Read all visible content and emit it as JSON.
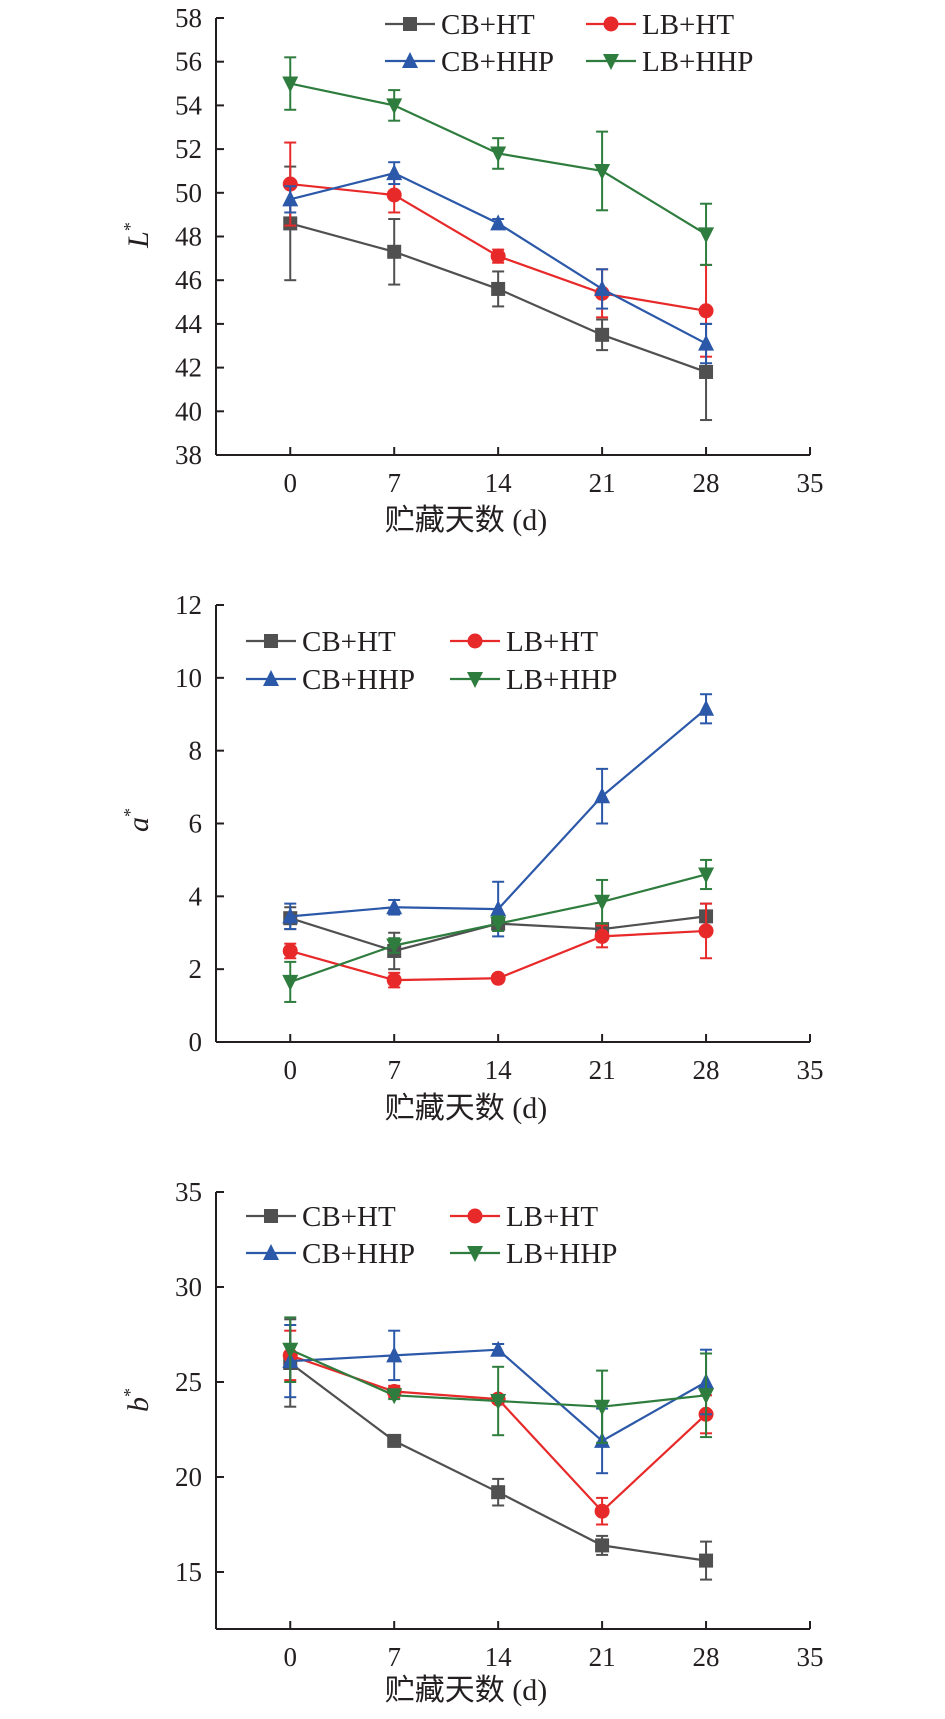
{
  "chart_data": [
    {
      "type": "line",
      "ylabel": "L",
      "ylabel_sup": "*",
      "xlabel": "贮藏天数 (d)",
      "x": [
        0,
        7,
        14,
        21,
        28
      ],
      "xlim": [
        -5,
        35
      ],
      "xticks": [
        0,
        7,
        14,
        21,
        28,
        35
      ],
      "ylim": [
        38,
        58
      ],
      "yticks": [
        38,
        40,
        42,
        44,
        46,
        48,
        50,
        52,
        54,
        56,
        58
      ],
      "legend": "top-right",
      "series": [
        {
          "name": "CB+HT",
          "color": "#505050",
          "marker": "square",
          "values": [
            48.6,
            47.3,
            45.6,
            43.5,
            41.8
          ],
          "errors": [
            2.6,
            1.5,
            0.8,
            0.7,
            2.2
          ]
        },
        {
          "name": "LB+HT",
          "color": "#e8292a",
          "marker": "circle",
          "values": [
            50.4,
            49.9,
            47.1,
            45.4,
            44.6
          ],
          "errors": [
            1.9,
            0.8,
            0.3,
            1.1,
            2.1
          ]
        },
        {
          "name": "CB+HHP",
          "color": "#2b58a8",
          "marker": "triangle-up",
          "values": [
            49.7,
            50.9,
            48.6,
            45.6,
            43.1
          ],
          "errors": [
            0.6,
            0.5,
            0.2,
            0.9,
            0.9
          ]
        },
        {
          "name": "LB+HHP",
          "color": "#2e7d3e",
          "marker": "triangle-down",
          "values": [
            55.0,
            54.0,
            51.8,
            51.0,
            48.1
          ],
          "errors": [
            1.2,
            0.7,
            0.7,
            1.8,
            1.4
          ]
        }
      ]
    },
    {
      "type": "line",
      "ylabel": "a",
      "ylabel_sup": "*",
      "xlabel": "贮藏天数 (d)",
      "x": [
        0,
        7,
        14,
        21,
        28
      ],
      "xlim": [
        -5,
        35
      ],
      "xticks": [
        0,
        7,
        14,
        21,
        28,
        35
      ],
      "ylim": [
        0,
        12
      ],
      "yticks": [
        0,
        2,
        4,
        6,
        8,
        10,
        12
      ],
      "legend": "top-left",
      "series": [
        {
          "name": "CB+HT",
          "color": "#505050",
          "marker": "square",
          "values": [
            3.4,
            2.5,
            3.25,
            3.1,
            3.45
          ],
          "errors": [
            0.3,
            0.5,
            0.2,
            0.15,
            0.35
          ]
        },
        {
          "name": "LB+HT",
          "color": "#e8292a",
          "marker": "circle",
          "values": [
            2.5,
            1.7,
            1.75,
            2.9,
            3.05
          ],
          "errors": [
            0.2,
            0.2,
            0.1,
            0.3,
            0.75
          ]
        },
        {
          "name": "CB+HHP",
          "color": "#2b58a8",
          "marker": "triangle-up",
          "values": [
            3.45,
            3.7,
            3.65,
            6.75,
            9.15
          ],
          "errors": [
            0.35,
            0.2,
            0.75,
            0.75,
            0.4
          ]
        },
        {
          "name": "LB+HHP",
          "color": "#2e7d3e",
          "marker": "triangle-down",
          "values": [
            1.65,
            2.65,
            3.25,
            3.85,
            4.6
          ],
          "errors": [
            0.55,
            0.2,
            0.2,
            0.6,
            0.4
          ]
        }
      ]
    },
    {
      "type": "line",
      "ylabel": "b",
      "ylabel_sup": "*",
      "xlabel": "贮藏天数 (d)",
      "x": [
        0,
        7,
        14,
        21,
        28
      ],
      "xlim": [
        -5,
        35
      ],
      "xticks": [
        0,
        7,
        14,
        21,
        28,
        35
      ],
      "ylim": [
        12,
        35
      ],
      "yticks": [
        15,
        20,
        25,
        30,
        35
      ],
      "legend": "top-left",
      "series": [
        {
          "name": "CB+HT",
          "color": "#505050",
          "marker": "square",
          "values": [
            26.0,
            21.9,
            19.2,
            16.4,
            15.6
          ],
          "errors": [
            2.3,
            0.2,
            0.7,
            0.5,
            1.0
          ]
        },
        {
          "name": "LB+HT",
          "color": "#e8292a",
          "marker": "circle",
          "values": [
            26.4,
            24.5,
            24.1,
            18.2,
            23.3
          ],
          "errors": [
            1.3,
            0.3,
            0.2,
            0.7,
            1.0
          ]
        },
        {
          "name": "CB+HHP",
          "color": "#2b58a8",
          "marker": "triangle-up",
          "values": [
            26.1,
            26.4,
            26.7,
            21.9,
            25.0
          ],
          "errors": [
            1.9,
            1.3,
            0.3,
            1.7,
            1.7
          ]
        },
        {
          "name": "LB+HHP",
          "color": "#2e7d3e",
          "marker": "triangle-down",
          "values": [
            26.7,
            24.3,
            24.0,
            23.7,
            24.3
          ],
          "errors": [
            1.7,
            0.2,
            1.8,
            1.9,
            2.2
          ]
        }
      ]
    }
  ]
}
